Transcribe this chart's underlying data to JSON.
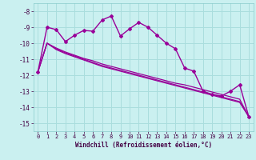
{
  "xlabel": "Windchill (Refroidissement éolien,°C)",
  "background_color": "#caf0f0",
  "grid_color": "#aadddd",
  "line_color": "#990099",
  "xlim": [
    -0.5,
    23.5
  ],
  "ylim": [
    -15.5,
    -7.5
  ],
  "yticks": [
    -15,
    -14,
    -13,
    -12,
    -11,
    -10,
    -9,
    -8
  ],
  "xticks": [
    0,
    1,
    2,
    3,
    4,
    5,
    6,
    7,
    8,
    9,
    10,
    11,
    12,
    13,
    14,
    15,
    16,
    17,
    18,
    19,
    20,
    21,
    22,
    23
  ],
  "series1_x": [
    0,
    1,
    2,
    3,
    4,
    5,
    6,
    7,
    8,
    9,
    10,
    11,
    12,
    13,
    14,
    15,
    16,
    17,
    18,
    19,
    20,
    21,
    22,
    23
  ],
  "series1_y": [
    -11.8,
    -9.0,
    -9.15,
    -9.9,
    -9.5,
    -9.2,
    -9.25,
    -8.55,
    -8.3,
    -9.55,
    -9.1,
    -8.7,
    -9.0,
    -9.5,
    -10.0,
    -10.35,
    -11.55,
    -11.75,
    -13.0,
    -13.2,
    -13.3,
    -13.0,
    -12.6,
    -14.6
  ],
  "series2_x": [
    0,
    1,
    2,
    3,
    4,
    5,
    6,
    7,
    8,
    9,
    10,
    11,
    12,
    13,
    14,
    15,
    16,
    17,
    18,
    19,
    20,
    21,
    22,
    23
  ],
  "series2_y": [
    -11.8,
    -10.0,
    -10.3,
    -10.55,
    -10.75,
    -10.95,
    -11.1,
    -11.3,
    -11.45,
    -11.6,
    -11.75,
    -11.9,
    -12.05,
    -12.2,
    -12.35,
    -12.5,
    -12.6,
    -12.75,
    -12.9,
    -13.05,
    -13.2,
    -13.35,
    -13.5,
    -14.6
  ],
  "series3_x": [
    0,
    1,
    2,
    3,
    4,
    5,
    6,
    7,
    8,
    9,
    10,
    11,
    12,
    13,
    14,
    15,
    16,
    17,
    18,
    19,
    20,
    21,
    22,
    23
  ],
  "series3_y": [
    -11.8,
    -10.0,
    -10.35,
    -10.6,
    -10.8,
    -11.0,
    -11.2,
    -11.4,
    -11.55,
    -11.7,
    -11.85,
    -12.0,
    -12.15,
    -12.3,
    -12.45,
    -12.6,
    -12.75,
    -12.9,
    -13.05,
    -13.2,
    -13.35,
    -13.5,
    -13.65,
    -14.6
  ],
  "series4_x": [
    0,
    1,
    2,
    3,
    4,
    5,
    6,
    7,
    8,
    9,
    10,
    11,
    12,
    13,
    14,
    15,
    16,
    17,
    18,
    19,
    20,
    21,
    22,
    23
  ],
  "series4_y": [
    -11.8,
    -10.0,
    -10.4,
    -10.65,
    -10.85,
    -11.05,
    -11.25,
    -11.45,
    -11.6,
    -11.75,
    -11.9,
    -12.05,
    -12.2,
    -12.35,
    -12.5,
    -12.65,
    -12.8,
    -12.95,
    -13.1,
    -13.25,
    -13.4,
    -13.55,
    -13.7,
    -14.6
  ]
}
